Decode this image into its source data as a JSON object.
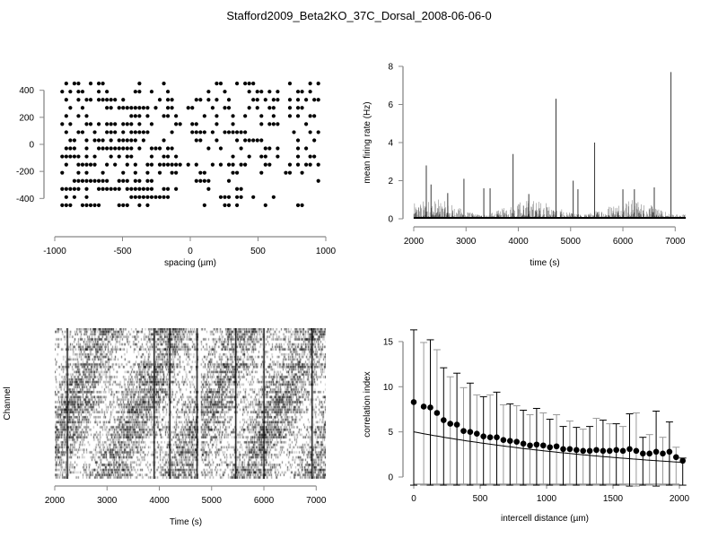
{
  "title": "Stafford2009_Beta2KO_37C_Dorsal_2008-06-06-0",
  "chart_data": [
    {
      "type": "scatter",
      "name": "electrode layout",
      "xlabel": "spacing (µm)",
      "ylabel": "",
      "xlim": [
        -1000,
        1000
      ],
      "ylim": [
        -450,
        450
      ],
      "xticks": [
        "-1000",
        "-500",
        "0",
        "500",
        "1000"
      ],
      "yticks": [
        "-400",
        "-200",
        "0",
        "200",
        "400"
      ],
      "grid_x_start": -945,
      "grid_x_step": 30,
      "rows": [
        {
          "y": 450,
          "occupied": "0101100101100000000100000100000000000011000101110000000010000101"
        },
        {
          "y": 390,
          "occupied": "1010110001010000001100100010000000001000100000101101010000110100"
        },
        {
          "y": 330,
          "occupied": "0100101101111101000000001011000001101010010000011010110010101011"
        },
        {
          "y": 270,
          "occupied": "0010010000011011111111010011000110000100110000101001100010110000"
        },
        {
          "y": 210,
          "occupied": "0100101000000000011101000110100000010010001001000100100010100110"
        },
        {
          "y": 150,
          "occupied": "1010001101011101110100100000110011000010001000000101110000001000"
        },
        {
          "y": 90,
          "occupied": "0100110010011101011111000001000011110100111111000000000001000101"
        },
        {
          "y": 30,
          "occupied": "0011001011101011111010000100000001100010000101111100000000100010"
        },
        {
          "y": -30,
          "occupied": "0111001001111111110100111011000000001001000010000011010000101000"
        },
        {
          "y": -90,
          "occupied": "1111101010001010110000100110100000000000001000100110010000100110"
        },
        {
          "y": -150,
          "occupied": "0100111110010100101001101111110101000101011011000011000010101101"
        },
        {
          "y": -210,
          "occupied": "1000101000100001001001001001100000110000001100000100000110010000"
        },
        {
          "y": -270,
          "occupied": "0001111111110011101101100000000001111000010000000000000000000001"
        },
        {
          "y": -330,
          "occupied": "1111101001111110111111100110100000001000000110000000000000000000"
        },
        {
          "y": -390,
          "occupied": "0101001000000000011111111110000000000001110110010000100000000000"
        },
        {
          "y": -450,
          "occupied": "1110011111000011100101000000000000010000110100000010000000110000"
        }
      ]
    },
    {
      "type": "line",
      "name": "mean firing rate",
      "xlabel": "time (s)",
      "ylabel": "mean firing rate (Hz)",
      "xlim": [
        2000,
        7200
      ],
      "ylim": [
        0,
        8
      ],
      "xticks": [
        "2000",
        "3000",
        "4000",
        "5000",
        "6000",
        "7000"
      ],
      "yticks": [
        "0",
        "2",
        "4",
        "6",
        "8"
      ],
      "baseline_max": 1.0,
      "peaks": [
        {
          "x": 2240,
          "y": 2.8
        },
        {
          "x": 2330,
          "y": 1.8
        },
        {
          "x": 2650,
          "y": 1.35
        },
        {
          "x": 2960,
          "y": 2.1
        },
        {
          "x": 3340,
          "y": 1.6
        },
        {
          "x": 3460,
          "y": 1.6
        },
        {
          "x": 3900,
          "y": 3.4
        },
        {
          "x": 4200,
          "y": 1.3
        },
        {
          "x": 4720,
          "y": 6.3
        },
        {
          "x": 5050,
          "y": 2.0
        },
        {
          "x": 5140,
          "y": 1.55
        },
        {
          "x": 5460,
          "y": 4.0
        },
        {
          "x": 6000,
          "y": 1.55
        },
        {
          "x": 6220,
          "y": 1.55
        },
        {
          "x": 6600,
          "y": 1.65
        },
        {
          "x": 6920,
          "y": 7.7
        }
      ],
      "gaps": [
        [
          4740,
          4790
        ]
      ]
    },
    {
      "type": "raster",
      "name": "spike raster",
      "xlabel": "Time (s)",
      "ylabel": "Channel",
      "xlim": [
        2000,
        7200
      ],
      "xticks": [
        "2000",
        "3000",
        "4000",
        "5000",
        "6000",
        "7000"
      ],
      "channels": 60,
      "burst_times": [
        2240,
        3900,
        4200,
        4720,
        5460,
        6000,
        6920
      ],
      "gaps": [
        [
          4740,
          4790
        ]
      ]
    },
    {
      "type": "scatter",
      "name": "correlation index",
      "xlabel": "intercell distance (µm)",
      "ylabel": "correlation index",
      "xlim": [
        0,
        2025
      ],
      "ylim": [
        0,
        15
      ],
      "xticks": [
        "0",
        "500",
        "1000",
        "1500",
        "2000"
      ],
      "yticks": [
        "0",
        "5",
        "10",
        "15"
      ],
      "x": [
        0,
        75,
        125,
        175,
        225,
        275,
        325,
        375,
        425,
        475,
        525,
        575,
        625,
        675,
        725,
        775,
        825,
        875,
        925,
        975,
        1025,
        1075,
        1125,
        1175,
        1225,
        1275,
        1325,
        1375,
        1425,
        1475,
        1525,
        1575,
        1625,
        1675,
        1725,
        1775,
        1825,
        1875,
        1925,
        1975,
        2025
      ],
      "y": [
        8.3,
        7.8,
        7.7,
        7.1,
        6.3,
        5.9,
        5.8,
        5.1,
        5.0,
        4.8,
        4.5,
        4.4,
        4.4,
        4.1,
        4.0,
        3.9,
        3.7,
        3.5,
        3.6,
        3.5,
        3.3,
        3.4,
        3.1,
        3.1,
        3.0,
        2.9,
        2.9,
        3.0,
        2.9,
        2.9,
        3.0,
        2.9,
        3.1,
        2.9,
        2.6,
        2.6,
        2.8,
        2.6,
        2.8,
        2.2,
        1.8
      ],
      "upper": [
        16.3,
        14.9,
        15.2,
        14.1,
        12.1,
        11.1,
        11.5,
        9.9,
        10.4,
        9.1,
        8.9,
        9.1,
        9.4,
        8.0,
        8.1,
        7.9,
        7.4,
        6.9,
        7.6,
        7.1,
        6.4,
        6.9,
        5.6,
        6.2,
        5.5,
        5.3,
        5.6,
        6.5,
        6.3,
        5.9,
        5.9,
        5.6,
        7.0,
        7.1,
        4.4,
        4.7,
        7.3,
        4.4,
        6.1,
        3.3,
        2.1
      ],
      "lower": [
        0.3,
        0.7,
        0.1,
        0.1,
        0.5,
        0.7,
        0.0,
        0.3,
        -0.7,
        0.5,
        0.1,
        -0.2,
        -0.6,
        0.2,
        0.0,
        -0.1,
        0.1,
        0.2,
        -0.5,
        -0.1,
        0.2,
        -0.2,
        0.7,
        0.1,
        0.5,
        0.5,
        0.2,
        -0.5,
        -0.1,
        0.0,
        0.1,
        0.2,
        -1.0,
        -1.0,
        0.7,
        0.5,
        -1.0,
        0.8,
        -0.4,
        1.0,
        1.5
      ],
      "fit": {
        "type": "exponential",
        "a": 5.0,
        "scale": 1800
      }
    }
  ]
}
